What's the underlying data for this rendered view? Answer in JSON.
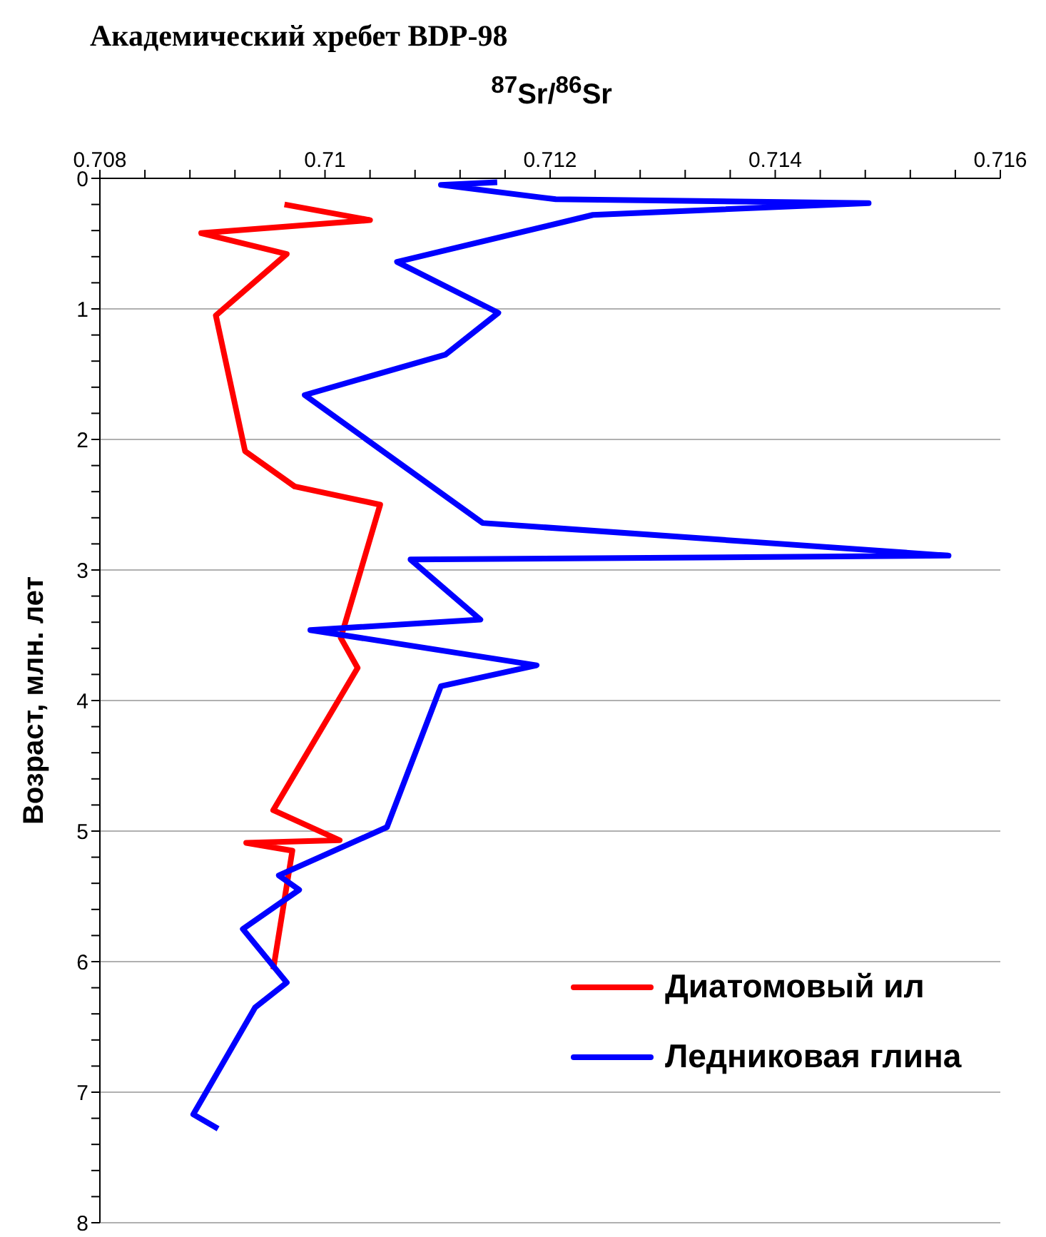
{
  "chart_data": {
    "type": "line",
    "title": "Академический хребет BDP-98",
    "xlabel": "$^{87}$Sr/$^{86}$Sr",
    "ylabel": "Возраст, млн. лет",
    "xlim": [
      0.708,
      0.716
    ],
    "xticks": [
      0.708,
      {
        "value": 0.7084,
        "label": null
      },
      {
        "value": 0.7088,
        "label": null
      },
      {
        "value": 0.7092,
        "label": null
      },
      {
        "value": 0.7096,
        "label": null
      },
      0.71,
      {
        "value": 0.7104,
        "label": null
      },
      {
        "value": 0.7108,
        "label": null
      },
      {
        "value": 0.7112,
        "label": null
      },
      {
        "value": 0.7116,
        "label": null
      },
      0.712,
      {
        "value": 0.7124,
        "label": null
      },
      {
        "value": 0.7128,
        "label": null
      },
      {
        "value": 0.7132,
        "label": null
      },
      {
        "value": 0.7136,
        "label": null
      },
      0.714,
      {
        "value": 0.7144,
        "label": null
      },
      {
        "value": 0.7148,
        "label": null
      },
      {
        "value": 0.7152,
        "label": null
      },
      {
        "value": 0.7156,
        "label": null
      },
      0.716
    ],
    "ylim": [
      8,
      0
    ],
    "yticks": [
      0,
      {
        "value": 0.2,
        "label": null
      },
      {
        "value": 0.4,
        "label": null
      },
      {
        "value": 0.6,
        "label": null
      },
      {
        "value": 0.8,
        "label": null
      },
      1,
      {
        "value": 1.2,
        "label": null
      },
      {
        "value": 1.4,
        "label": null
      },
      {
        "value": 1.6,
        "label": null
      },
      {
        "value": 1.8,
        "label": null
      },
      2,
      {
        "value": 2.2,
        "label": null
      },
      {
        "value": 2.4,
        "label": null
      },
      {
        "value": 2.6,
        "label": null
      },
      {
        "value": 2.8,
        "label": null
      },
      3,
      {
        "value": 3.2,
        "label": null
      },
      {
        "value": 3.4,
        "label": null
      },
      {
        "value": 3.6,
        "label": null
      },
      {
        "value": 3.8,
        "label": null
      },
      4,
      {
        "value": 4.2,
        "label": null
      },
      {
        "value": 4.4,
        "label": null
      },
      {
        "value": 4.6,
        "label": null
      },
      {
        "value": 4.8,
        "label": null
      },
      5,
      {
        "value": 5.2,
        "label": null
      },
      {
        "value": 5.4,
        "label": null
      },
      {
        "value": 5.6,
        "label": null
      },
      {
        "value": 5.8,
        "label": null
      },
      6,
      {
        "value": 6.2,
        "label": null
      },
      {
        "value": 6.4,
        "label": null
      },
      {
        "value": 6.6,
        "label": null
      },
      {
        "value": 6.8,
        "label": null
      },
      7,
      {
        "value": 7.2,
        "label": null
      },
      {
        "value": 7.4,
        "label": null
      },
      {
        "value": 7.6,
        "label": null
      },
      {
        "value": 7.8,
        "label": null
      },
      8
    ],
    "grid": "y",
    "legend": "bottom right",
    "marker": "none",
    "line_style": "solid",
    "series": [
      {
        "name": "Диатомовый ил",
        "color": "#ff0000",
        "x": [
          0.70964,
          0.7104,
          0.7089,
          0.70966,
          0.70903,
          0.70929,
          0.70973,
          0.71049,
          0.71014,
          0.71029,
          0.70954,
          0.71013,
          0.7093,
          0.70971,
          0.70954
        ],
        "values": [
          0.2,
          0.32,
          0.42,
          0.58,
          1.05,
          2.09,
          2.36,
          2.5,
          3.52,
          3.75,
          4.84,
          5.07,
          5.09,
          5.15,
          6.06
        ]
      },
      {
        "name": "Ледниковая глина",
        "color": "#0000ff",
        "x": [
          0.71153,
          0.71103,
          0.71205,
          0.71483,
          0.71238,
          0.71064,
          0.71154,
          0.71107,
          0.70982,
          0.7114,
          0.71554,
          0.71076,
          0.71138,
          0.70987,
          0.71188,
          0.71103,
          0.71055,
          0.70959,
          0.70977,
          0.70927,
          0.70966,
          0.70938,
          0.70883,
          0.70905
        ],
        "values": [
          0.03,
          0.05,
          0.16,
          0.19,
          0.28,
          0.64,
          1.03,
          1.35,
          1.66,
          2.64,
          2.89,
          2.92,
          3.38,
          3.46,
          3.73,
          3.89,
          4.97,
          5.34,
          5.45,
          5.75,
          6.16,
          6.35,
          7.17,
          7.28
        ]
      }
    ]
  }
}
